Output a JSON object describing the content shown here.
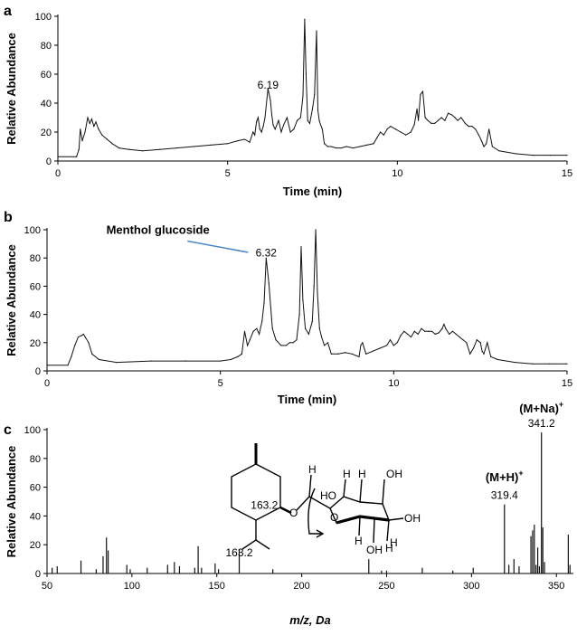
{
  "figure": {
    "panel_labels": [
      "a",
      "b",
      "c"
    ]
  },
  "chart_data": [
    {
      "type": "line",
      "panel": "a",
      "xlabel": "Time (min)",
      "ylabel": "Relative  Abundance",
      "xlim": [
        0,
        15
      ],
      "ylim": [
        0,
        100
      ],
      "xticks": [
        0,
        5,
        10,
        15
      ],
      "yticks": [
        0,
        20,
        40,
        60,
        80,
        100
      ],
      "annotations": [
        {
          "text": "6.19",
          "x": 6.19,
          "y": 50
        }
      ],
      "series": [
        {
          "x": [
            0,
            0.55,
            0.62,
            0.66,
            0.72,
            0.8,
            0.88,
            0.94,
            1.0,
            1.06,
            1.12,
            1.2,
            1.3,
            1.45,
            1.6,
            1.8,
            2.1,
            2.5,
            3.0,
            3.5,
            4.0,
            4.5,
            5.0,
            5.3,
            5.5,
            5.65,
            5.75,
            5.8,
            5.85,
            5.9,
            5.95,
            6.0,
            6.05,
            6.1,
            6.19,
            6.26,
            6.3,
            6.34,
            6.4,
            6.5,
            6.58,
            6.65,
            6.75,
            6.85,
            6.95,
            7.05,
            7.15,
            7.22,
            7.27,
            7.31,
            7.36,
            7.42,
            7.5,
            7.56,
            7.62,
            7.66,
            7.7,
            7.74,
            7.79,
            7.85,
            7.95,
            8.05,
            8.2,
            8.35,
            8.5,
            8.7,
            8.9,
            9.1,
            9.3,
            9.4,
            9.5,
            9.6,
            9.7,
            9.8,
            9.95,
            10.1,
            10.25,
            10.4,
            10.5,
            10.58,
            10.62,
            10.68,
            10.75,
            10.82,
            10.9,
            11.0,
            11.1,
            11.2,
            11.3,
            11.4,
            11.5,
            11.6,
            11.7,
            11.78,
            11.88,
            12.0,
            12.1,
            12.2,
            12.3,
            12.4,
            12.48,
            12.55,
            12.62,
            12.7,
            12.8,
            13.0,
            13.5,
            14.0,
            14.5,
            15.0
          ],
          "y": [
            3,
            3,
            8,
            22,
            14,
            20,
            30,
            26,
            29,
            24,
            27,
            22,
            18,
            15,
            12,
            9,
            8,
            7,
            8,
            9,
            10,
            11,
            12,
            14,
            15,
            13,
            20,
            18,
            27,
            30,
            22,
            20,
            24,
            30,
            50,
            42,
            32,
            25,
            22,
            28,
            20,
            25,
            30,
            20,
            22,
            28,
            30,
            45,
            98,
            60,
            28,
            26,
            36,
            46,
            90,
            35,
            28,
            25,
            22,
            12,
            10,
            10,
            9,
            9,
            10,
            9,
            10,
            11,
            12,
            16,
            20,
            18,
            22,
            24,
            22,
            20,
            18,
            20,
            25,
            36,
            28,
            46,
            48,
            30,
            28,
            26,
            26,
            28,
            30,
            28,
            33,
            32,
            30,
            28,
            30,
            26,
            24,
            24,
            22,
            18,
            14,
            10,
            12,
            22,
            10,
            7,
            5,
            4,
            4,
            4
          ]
        }
      ]
    },
    {
      "type": "line",
      "panel": "b",
      "xlabel": "Time (min)",
      "ylabel": "Relative  Abundance",
      "xlim": [
        0,
        15
      ],
      "ylim": [
        0,
        100
      ],
      "xticks": [
        0,
        5,
        10,
        15
      ],
      "yticks": [
        0,
        20,
        40,
        60,
        80,
        100
      ],
      "annotations": [
        {
          "text": "Menthol glucoside",
          "x": 3.2,
          "y": 97
        },
        {
          "text": "6.32",
          "x": 6.32,
          "y": 81
        }
      ],
      "series": [
        {
          "x": [
            0,
            0.6,
            0.7,
            0.8,
            0.9,
            1.0,
            1.05,
            1.1,
            1.2,
            1.3,
            1.5,
            2.0,
            3.0,
            4.0,
            5.0,
            5.3,
            5.5,
            5.62,
            5.7,
            5.78,
            5.85,
            5.95,
            6.05,
            6.12,
            6.2,
            6.26,
            6.32,
            6.4,
            6.5,
            6.6,
            6.75,
            6.9,
            7.0,
            7.1,
            7.2,
            7.28,
            7.33,
            7.38,
            7.45,
            7.55,
            7.65,
            7.7,
            7.75,
            7.8,
            7.86,
            7.92,
            8.0,
            8.1,
            8.2,
            8.4,
            8.6,
            8.8,
            9.0,
            9.05,
            9.1,
            9.2,
            9.4,
            9.6,
            9.8,
            9.9,
            10.0,
            10.1,
            10.2,
            10.3,
            10.4,
            10.5,
            10.6,
            10.7,
            10.8,
            10.9,
            11.0,
            11.1,
            11.2,
            11.3,
            11.4,
            11.45,
            11.5,
            11.6,
            11.7,
            11.8,
            11.9,
            12.0,
            12.1,
            12.2,
            12.3,
            12.4,
            12.5,
            12.55,
            12.6,
            12.7,
            12.8,
            13.0,
            13.5,
            14.0,
            14.5,
            15.0
          ],
          "y": [
            4,
            4,
            10,
            18,
            24,
            25,
            26,
            24,
            20,
            12,
            8,
            6,
            7,
            7,
            7,
            8,
            10,
            12,
            28,
            18,
            22,
            28,
            30,
            26,
            35,
            48,
            80,
            62,
            30,
            22,
            18,
            18,
            20,
            20,
            22,
            40,
            88,
            50,
            30,
            26,
            35,
            60,
            100,
            55,
            30,
            24,
            18,
            20,
            12,
            12,
            13,
            12,
            10,
            18,
            20,
            12,
            14,
            16,
            18,
            22,
            18,
            20,
            25,
            28,
            26,
            24,
            28,
            26,
            30,
            28,
            28,
            28,
            26,
            27,
            30,
            33,
            30,
            26,
            28,
            26,
            24,
            22,
            20,
            12,
            16,
            22,
            20,
            14,
            12,
            20,
            10,
            8,
            6,
            5,
            5,
            5
          ]
        }
      ]
    },
    {
      "type": "bar",
      "panel": "c",
      "xlabel": "m/z, Da",
      "ylabel": "Relative  Abundance",
      "xlim": [
        50,
        360
      ],
      "ylim": [
        0,
        100
      ],
      "xticks": [
        50,
        100,
        150,
        200,
        250,
        300,
        350
      ],
      "yticks": [
        0,
        20,
        40,
        60,
        80,
        100
      ],
      "annotations": [
        {
          "text": "(M+Na)",
          "sup": "+",
          "x": 341.2,
          "y": 112
        },
        {
          "text": "341.2",
          "x": 341.2,
          "y": 102
        },
        {
          "text": "(M+H)",
          "sup": "+",
          "x": 319.4,
          "y": 64
        },
        {
          "text": "319.4",
          "x": 319.4,
          "y": 52
        },
        {
          "text": "163.2",
          "x": 163.2,
          "y": 12
        },
        {
          "text": "163.2",
          "x": 178,
          "y": 45
        }
      ],
      "x": [
        53,
        56,
        70,
        79,
        83,
        85,
        86,
        97,
        99,
        109,
        121,
        125,
        128,
        137,
        139,
        141,
        149,
        151,
        163.2,
        183,
        239.5,
        247,
        250,
        271,
        289,
        301,
        319.4,
        322,
        325,
        328,
        335,
        336,
        337,
        338,
        339,
        340,
        341.2,
        342,
        343,
        357,
        358
      ],
      "values": [
        4,
        5,
        9,
        3,
        12,
        25,
        16,
        6,
        3,
        4,
        6,
        8,
        5,
        4,
        19,
        4,
        7,
        3,
        17,
        3,
        10,
        2,
        2,
        4,
        2,
        4,
        48,
        6,
        10,
        5,
        26,
        30,
        34,
        6,
        18,
        5,
        98,
        32,
        8,
        27,
        6
      ]
    }
  ],
  "structure_labels": [
    "HO",
    "O",
    "H",
    "H",
    "OH",
    "H",
    "OH",
    "H",
    "OH",
    "H",
    "H",
    "O"
  ]
}
